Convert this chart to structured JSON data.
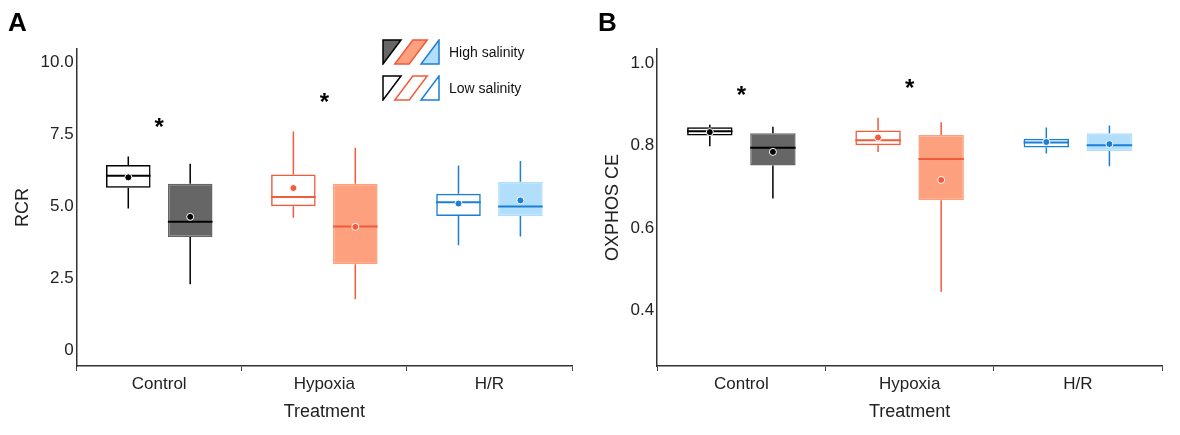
{
  "chart_data": [
    {
      "type": "box",
      "title": "A",
      "xlabel": "Treatment",
      "ylabel": "RCR",
      "categories": [
        "Control",
        "Hypoxia",
        "H/R"
      ],
      "ylim": [
        -0.55,
        10.45
      ],
      "yticks": [
        0,
        {
          "value": 2.5,
          "label": "2.5"
        },
        {
          "value": 5,
          "label": "5.0"
        },
        {
          "value": 7.5,
          "label": "7.5"
        },
        {
          "value": 10,
          "label": "10.0"
        }
      ],
      "grid": false,
      "legend": "top right",
      "marker": "circle",
      "series": [
        {
          "name": "Low salinity",
          "colors": [
            "#000000",
            "#f15a3a",
            "#1c7fd6"
          ],
          "boxes": [
            {
              "low": 4.92,
              "q1": 5.64,
              "median": 6.06,
              "q3": 6.43,
              "high": 6.72,
              "mean": 6.0
            },
            {
              "low": 4.6,
              "q1": 5.0,
              "median": 5.32,
              "q3": 6.1,
              "high": 7.59,
              "mean": 5.63
            },
            {
              "low": 3.64,
              "q1": 4.66,
              "median": 5.14,
              "q3": 5.43,
              "high": 6.41,
              "mean": 5.09
            }
          ]
        },
        {
          "name": "High salinity",
          "colors": [
            "#666666",
            "#fca07e",
            "#b0defb"
          ],
          "boxes": [
            {
              "low": 2.29,
              "q1": 3.93,
              "median": 4.46,
              "q3": 5.78,
              "high": 6.47,
              "mean": 4.63
            },
            {
              "low": 1.77,
              "q1": 2.98,
              "median": 4.29,
              "q3": 5.78,
              "high": 7.03,
              "mean": 4.28
            },
            {
              "low": 3.95,
              "q1": 4.66,
              "median": 4.99,
              "q3": 5.85,
              "high": 6.57,
              "mean": 5.2
            }
          ]
        }
      ],
      "annotations": [
        "*",
        "*"
      ]
    },
    {
      "type": "box",
      "title": "B",
      "xlabel": "Treatment",
      "ylabel": "OXPHOS CE",
      "categories": [
        "Control",
        "Hypoxia",
        "H/R"
      ],
      "ylim": [
        0.265,
        1.033
      ],
      "yticks": [
        0.4,
        0.6,
        0.8,
        {
          "value": 1,
          "label": "1.0"
        }
      ],
      "grid": false,
      "legend": false,
      "marker": "circle",
      "series": [
        {
          "colors": [
            "#000000",
            "#f15a3a",
            "#1c7fd6"
          ],
          "boxes": [
            {
              "low": 0.798,
              "q1": 0.824,
              "median": 0.834,
              "q3": 0.844,
              "high": 0.85,
              "mean": 0.832
            },
            {
              "low": 0.784,
              "q1": 0.8,
              "median": 0.812,
              "q3": 0.836,
              "high": 0.867,
              "mean": 0.819
            },
            {
              "low": 0.78,
              "q1": 0.795,
              "median": 0.807,
              "q3": 0.816,
              "high": 0.843,
              "mean": 0.808
            }
          ]
        },
        {
          "colors": [
            "#666666",
            "#fca07e",
            "#b0defb"
          ],
          "boxes": [
            {
              "low": 0.671,
              "q1": 0.751,
              "median": 0.794,
              "q3": 0.829,
              "high": 0.845,
              "mean": 0.784
            },
            {
              "low": 0.445,
              "q1": 0.667,
              "median": 0.767,
              "q3": 0.825,
              "high": 0.856,
              "mean": 0.716
            },
            {
              "low": 0.749,
              "q1": 0.786,
              "median": 0.8,
              "q3": 0.829,
              "high": 0.848,
              "mean": 0.803
            }
          ]
        }
      ],
      "annotations": [
        "*",
        "*"
      ]
    }
  ]
}
